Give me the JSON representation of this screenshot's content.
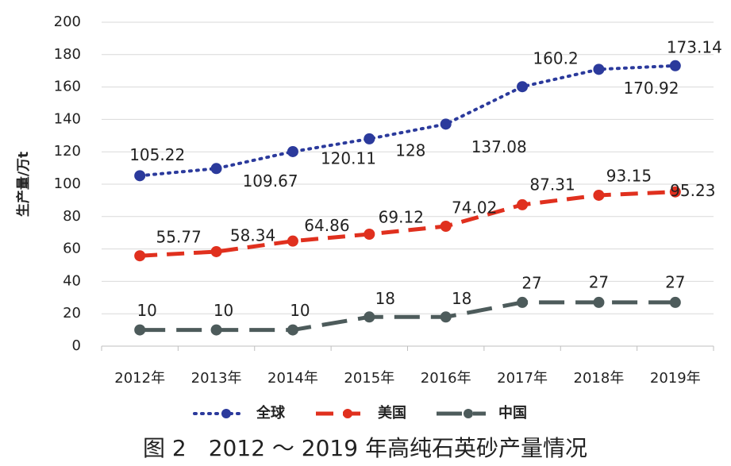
{
  "chart_data": {
    "type": "line",
    "y_label": "生产量/万t",
    "caption": "图 2　2012 ～ 2019 年高纯石英砂产量情况",
    "categories": [
      "2012年",
      "2013年",
      "2014年",
      "2015年",
      "2016年",
      "2017年",
      "2018年",
      "2019年"
    ],
    "series": [
      {
        "name": "全球",
        "color": "#2b3a9c",
        "values": [
          105.22,
          109.67,
          120.11,
          128,
          137.08,
          160.2,
          170.92,
          173.14
        ]
      },
      {
        "name": "美国",
        "color": "#e0301e",
        "values": [
          55.77,
          58.34,
          64.86,
          69.12,
          74.02,
          87.31,
          93.15,
          95.23
        ]
      },
      {
        "name": "中国",
        "color": "#4d5b5b",
        "values": [
          10,
          10,
          10,
          18,
          18,
          27,
          27,
          27
        ]
      }
    ],
    "ylim": [
      0,
      200
    ],
    "yticks": [
      0,
      20,
      40,
      60,
      80,
      100,
      120,
      140,
      160,
      180,
      200
    ],
    "grid": true,
    "legend": "bottom"
  }
}
